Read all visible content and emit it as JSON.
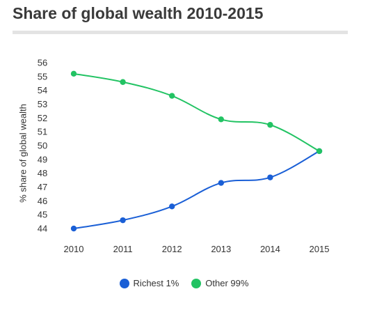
{
  "chart_data": {
    "type": "line",
    "title": "Share of global wealth 2010-2015",
    "xlabel": "",
    "ylabel": "% share of global wealth",
    "x": [
      "2010",
      "2011",
      "2012",
      "2013",
      "2014",
      "2015"
    ],
    "yticks": [
      44,
      45,
      46,
      47,
      48,
      49,
      50,
      51,
      52,
      53,
      54,
      55,
      56
    ],
    "ylim": [
      43.7,
      56.2
    ],
    "grid": false,
    "legend_position": "bottom",
    "series": [
      {
        "name": "Richest 1%",
        "color": "#1a5fd6",
        "values": [
          44.0,
          44.6,
          45.6,
          47.3,
          47.7,
          49.6
        ]
      },
      {
        "name": "Other 99%",
        "color": "#22c363",
        "values": [
          55.2,
          54.6,
          53.6,
          51.9,
          51.5,
          49.6
        ]
      }
    ]
  }
}
